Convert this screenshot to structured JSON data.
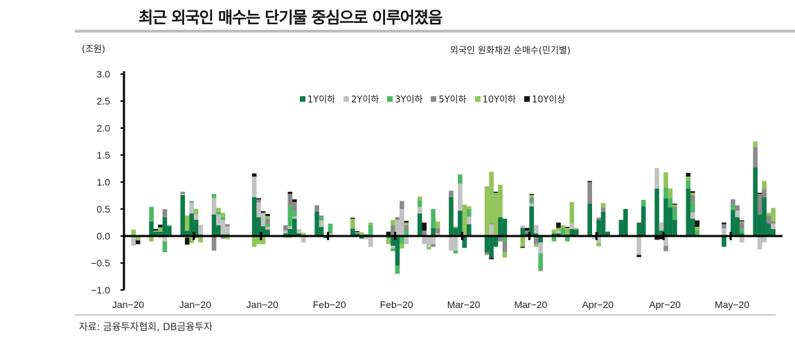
{
  "header": {
    "title": "최근 외국인 매수는 단기물 중심으로 이루어졌음",
    "unit": "(조원)",
    "subtitle": "외국인 원화채권 순매수(민기별)",
    "source": "자료: 금융투자협회, DB금융투자"
  },
  "chart_data": {
    "type": "bar",
    "stacked": true,
    "title": "외국인 원화채권 순매수(민기별)",
    "ylabel": "(조원)",
    "ylim": [
      -1.0,
      3.0
    ],
    "yticks": [
      "3.0",
      "2.5",
      "2.0",
      "1.5",
      "1.0",
      "0.5",
      "0.0",
      "−0.5",
      "−1.0"
    ],
    "ytick_values": [
      3.0,
      2.5,
      2.0,
      1.5,
      1.0,
      0.5,
      0.0,
      -0.5,
      -1.0
    ],
    "xticks": [
      {
        "day": 0,
        "label": "Jan−20"
      },
      {
        "day": 15,
        "label": "Jan−20"
      },
      {
        "day": 30,
        "label": "Jan−20"
      },
      {
        "day": 45,
        "label": "Feb−20"
      },
      {
        "day": 60,
        "label": "Feb−20"
      },
      {
        "day": 75,
        "label": "Mar−20"
      },
      {
        "day": 90,
        "label": "Mar−20"
      },
      {
        "day": 105,
        "label": "Apr−20"
      },
      {
        "day": 120,
        "label": "Apr−20"
      },
      {
        "day": 135,
        "label": "May−20"
      }
    ],
    "x_days": 146,
    "legend_position": "top-center",
    "series": [
      {
        "name": "1Y이하",
        "color": "#0e7a4a"
      },
      {
        "name": "2Y이하",
        "color": "#c2c2c2"
      },
      {
        "name": "3Y이하",
        "color": "#4cb866"
      },
      {
        "name": "5Y이하",
        "color": "#8a8a8a"
      },
      {
        "name": "10Y이하",
        "color": "#93c45a"
      },
      {
        "name": "10Y이상",
        "color": "#141414"
      }
    ],
    "bars_columns": [
      "day",
      "1Y이하",
      "2Y이하",
      "3Y이하",
      "5Y이하",
      "10Y이하",
      "10Y이상"
    ],
    "bars": [
      [
        1,
        0,
        -0.18,
        0,
        0,
        0.12,
        0
      ],
      [
        2,
        0,
        0,
        0,
        0,
        -0.08,
        -0.07
      ],
      [
        5,
        0.27,
        0,
        0.27,
        0,
        -0.1,
        0
      ],
      [
        6,
        0.08,
        0,
        0,
        0,
        0.02,
        0.03
      ],
      [
        7,
        0.08,
        -0.03,
        0,
        0,
        0.08,
        0.05
      ],
      [
        8,
        0.35,
        -0.1,
        -0.2,
        0.15,
        0,
        0
      ],
      [
        9,
        0.18,
        0,
        0.02,
        0,
        0,
        0
      ],
      [
        12,
        0.76,
        0.02,
        0,
        0.04,
        0,
        0
      ],
      [
        13,
        0.1,
        -0.03,
        0,
        0,
        0.28,
        -0.13
      ],
      [
        14,
        0.42,
        0.2,
        0.03,
        0,
        -0.13,
        0
      ],
      [
        15,
        0.3,
        0.1,
        0,
        0,
        0.1,
        -0.03
      ],
      [
        16,
        0.03,
        0.18,
        0,
        0,
        -0.12,
        0
      ],
      [
        19,
        0.4,
        0.3,
        0.08,
        -0.27,
        0,
        0
      ],
      [
        20,
        0.2,
        0.2,
        0.05,
        0,
        0.07,
        0
      ],
      [
        21,
        0.03,
        0.27,
        0.05,
        -0.05,
        0.08,
        0
      ],
      [
        22,
        0.03,
        0.15,
        0,
        0.04,
        -0.06,
        0
      ],
      [
        28,
        0.72,
        0.38,
        0,
        0,
        -0.2,
        0.06
      ],
      [
        29,
        0.35,
        0.27,
        0,
        0.06,
        -0.15,
        0.02
      ],
      [
        30,
        0.18,
        0.25,
        0,
        0,
        -0.15,
        0.03
      ],
      [
        31,
        0.12,
        0.05,
        0.05,
        0.1,
        0.05,
        0.04
      ],
      [
        35,
        0.05,
        0.05,
        0,
        0.1,
        -0.03,
        0
      ],
      [
        36,
        0.13,
        0.05,
        0.38,
        0.22,
        -0.03,
        0.04
      ],
      [
        37,
        0.32,
        0.04,
        0.1,
        0.17,
        0,
        0.05
      ],
      [
        38,
        0.05,
        0.05,
        0,
        0,
        0.02,
        0
      ],
      [
        39,
        0.02,
        -0.12,
        0,
        0,
        0.04,
        0
      ],
      [
        42,
        0.45,
        0,
        0,
        0.12,
        0,
        0
      ],
      [
        43,
        0.17,
        0.12,
        0.05,
        0.04,
        0,
        0
      ],
      [
        44,
        -0.04,
        0.02,
        0,
        0,
        0,
        0
      ],
      [
        45,
        0,
        0.05,
        0.18,
        0,
        0,
        0
      ],
      [
        50,
        0.14,
        0,
        0,
        0,
        0.18,
        0.02
      ],
      [
        51,
        0.05,
        0.02,
        0,
        0,
        0,
        0.02
      ],
      [
        52,
        -0.05,
        0,
        0,
        0,
        0.07,
        0
      ],
      [
        53,
        0.03,
        -0.06,
        0,
        0,
        0,
        0
      ],
      [
        54,
        0.02,
        -0.2,
        0.18,
        0,
        0.05,
        0
      ],
      [
        58,
        0,
        0,
        -0.05,
        0,
        -0.1,
        0.08
      ],
      [
        59,
        -0.18,
        -0.05,
        -0.05,
        0.2,
        0.1,
        0
      ],
      [
        60,
        -0.55,
        0.3,
        -0.15,
        0.05,
        0,
        0
      ],
      [
        61,
        0,
        0.5,
        -0.15,
        0.15,
        -0.08,
        0
      ],
      [
        62,
        0,
        -0.15,
        0.1,
        0.1,
        0.05,
        0.03
      ],
      [
        65,
        0.42,
        0.12,
        0.12,
        0,
        0.07,
        0
      ],
      [
        66,
        0,
        -0.15,
        0,
        0.1,
        0,
        0.15
      ],
      [
        67,
        0,
        -0.2,
        0,
        0,
        -0.05,
        0
      ],
      [
        68,
        0.15,
        -0.15,
        0.35,
        -0.05,
        0,
        0
      ],
      [
        69,
        0,
        0.05,
        0,
        0.1,
        0.12,
        0
      ],
      [
        72,
        0.72,
        -0.27,
        0,
        0.12,
        0,
        0
      ],
      [
        73,
        0.15,
        -0.27,
        -0.05,
        0,
        0.03,
        0
      ],
      [
        74,
        0.47,
        0.5,
        0.17,
        0,
        0,
        0
      ],
      [
        75,
        -0.22,
        0.03,
        0,
        0,
        0.55,
        0
      ],
      [
        76,
        0.22,
        0.14,
        0.14,
        0,
        0.05,
        0
      ],
      [
        80,
        -0.3,
        0,
        0,
        -0.05,
        0.92,
        0
      ],
      [
        81,
        -0.4,
        0.22,
        0.02,
        0,
        0.95,
        -0.03
      ],
      [
        82,
        -0.2,
        0,
        0,
        0,
        0.8,
        0.02
      ],
      [
        83,
        0.35,
        0,
        0,
        -0.1,
        0.6,
        0
      ],
      [
        84,
        0.32,
        0,
        -0.1,
        -0.2,
        -0.1,
        0
      ],
      [
        88,
        0.15,
        0.05,
        0,
        0,
        -0.2,
        -0.02
      ],
      [
        89,
        0.05,
        0,
        0,
        0.05,
        0,
        0.05
      ],
      [
        90,
        0.55,
        0.05,
        0.04,
        0.07,
        0.05,
        0.02
      ],
      [
        91,
        0.05,
        0.15,
        0,
        -0.15,
        -0.05,
        0
      ],
      [
        92,
        -0.12,
        -0.2,
        -0.3,
        -0.03,
        0,
        0
      ],
      [
        95,
        0.05,
        0,
        -0.1,
        0,
        0.07,
        0
      ],
      [
        96,
        0.05,
        0.05,
        0,
        0,
        0.05,
        0.1
      ],
      [
        97,
        0,
        0,
        0.15,
        0,
        0.05,
        0
      ],
      [
        98,
        0.03,
        0,
        -0.1,
        0,
        0.12,
        0.02
      ],
      [
        99,
        0.13,
        0.1,
        0,
        0,
        0.4,
        0
      ],
      [
        100,
        0.12,
        0,
        0,
        0,
        0.03,
        0
      ],
      [
        103,
        0.6,
        0,
        0,
        0.4,
        0,
        0.02
      ],
      [
        104,
        0.02,
        -0.05,
        0,
        0,
        0,
        0
      ],
      [
        105,
        0.3,
        -0.12,
        0,
        0.04,
        -0.07,
        0
      ],
      [
        106,
        0.45,
        0,
        0,
        0.08,
        0.08,
        0
      ],
      [
        107,
        0.08,
        0.01,
        0,
        0,
        0,
        0
      ],
      [
        110,
        0.3,
        0,
        0,
        0,
        0,
        0
      ],
      [
        111,
        0.5,
        0,
        0,
        0,
        0,
        0
      ],
      [
        114,
        0.25,
        -0.35,
        0,
        0,
        0,
        -0.04
      ],
      [
        115,
        0.55,
        0,
        0.12,
        0,
        0,
        0
      ],
      [
        118,
        0.88,
        0.38,
        0,
        0,
        0,
        -0.07
      ],
      [
        119,
        0.1,
        0.15,
        0,
        0,
        0,
        -0.06
      ],
      [
        120,
        0.7,
        -0.18,
        0.2,
        -0.1,
        0.28,
        0
      ],
      [
        121,
        0.53,
        0,
        0.17,
        0,
        0.18,
        0
      ],
      [
        122,
        0.3,
        0,
        0.2,
        0.05,
        0.03,
        0.02
      ],
      [
        125,
        0.88,
        0,
        0.15,
        0,
        0.07,
        0.07
      ],
      [
        126,
        0.32,
        0.12,
        0.2,
        0.12,
        0.04,
        0.03
      ],
      [
        127,
        0.01,
        0,
        0.1,
        0,
        0.06,
        0.12
      ],
      [
        133,
        -0.2,
        0.14,
        0,
        0.08,
        0,
        0.03
      ],
      [
        135,
        0.48,
        0,
        0.1,
        0.1,
        0,
        0
      ],
      [
        136,
        0.35,
        0.12,
        0,
        0.1,
        0,
        0
      ],
      [
        137,
        0.05,
        -0.12,
        0.08,
        0.12,
        0.02,
        0.02
      ],
      [
        140,
        1.27,
        0,
        0,
        0.38,
        0.1,
        0
      ],
      [
        141,
        0.4,
        -0.25,
        0,
        0.38,
        0,
        0.02
      ],
      [
        142,
        0.72,
        -0.12,
        0,
        0.15,
        0.15,
        0
      ],
      [
        143,
        0.23,
        0,
        0,
        0.15,
        0.05,
        0
      ],
      [
        144,
        0.13,
        0.1,
        0,
        0.04,
        0.25,
        0
      ]
    ]
  }
}
